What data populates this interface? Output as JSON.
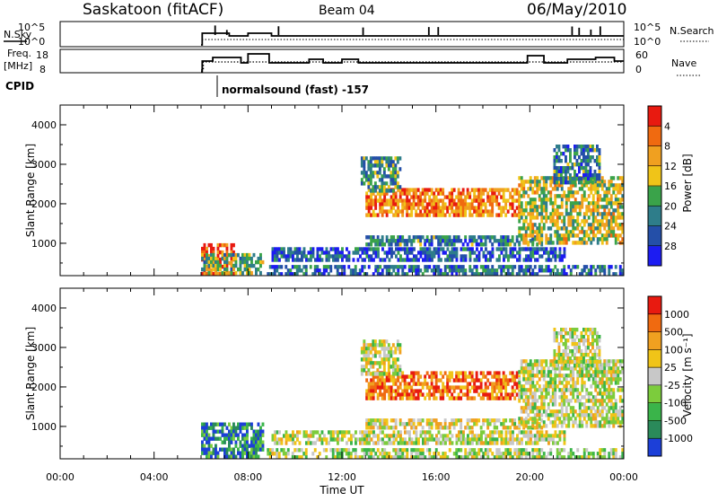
{
  "header": {
    "station": "Saskatoon (fitACF)",
    "beam": "Beam 04",
    "date": "06/May/2010"
  },
  "summary": {
    "nsky_label": "N.Sky",
    "nsky_ticks": [
      "10^5",
      "10^0"
    ],
    "nsearch_label": "N.Search",
    "nsearch_ticks": [
      "10^5",
      "10^0"
    ],
    "freq_label": "Freq.",
    "freq_unit": "[MHz]",
    "freq_ticks": [
      "18",
      "8"
    ],
    "nave_label": "Nave",
    "nave_ticks": [
      "60",
      "0"
    ],
    "cpid_label": "CPID",
    "cpid_value": "normalsound (fast) -157"
  },
  "chart_data": [
    {
      "type": "heatmap",
      "name": "power",
      "ylabel": "Slant Range [km]",
      "yticks": [
        "1000",
        "2000",
        "3000",
        "4000"
      ],
      "ylim": [
        180,
        4500
      ],
      "xlim": [
        0,
        24
      ],
      "colorbar_label": "Power [dB]",
      "colorbar_ticks": [
        "4",
        "8",
        "12",
        "16",
        "20",
        "24",
        "28"
      ],
      "colorbar_colors": [
        "#1c1cf2",
        "#244fa8",
        "#2e7d8a",
        "#3aa34a",
        "#f0c418",
        "#f0a020",
        "#f06a10",
        "#e81a10"
      ],
      "bands": [
        {
          "x": [
            6.0,
            7.4
          ],
          "y": [
            180,
            1000
          ],
          "level": 0.85
        },
        {
          "x": [
            6.0,
            8.6
          ],
          "y": [
            250,
            750
          ],
          "level": 0.45
        },
        {
          "x": [
            8.8,
            24.0
          ],
          "y": [
            200,
            450
          ],
          "level": 0.25
        },
        {
          "x": [
            9.0,
            21.5
          ],
          "y": [
            550,
            900
          ],
          "level": 0.2
        },
        {
          "x": [
            13.0,
            20.5
          ],
          "y": [
            1000,
            1200
          ],
          "level": 0.3
        },
        {
          "x": [
            13.0,
            19.5
          ],
          "y": [
            1700,
            2400
          ],
          "level": 0.75
        },
        {
          "x": [
            12.8,
            14.5
          ],
          "y": [
            2300,
            3200
          ],
          "level": 0.35
        },
        {
          "x": [
            19.5,
            24.0
          ],
          "y": [
            1000,
            2700
          ],
          "level": 0.55
        },
        {
          "x": [
            21.0,
            23.0
          ],
          "y": [
            2500,
            3500
          ],
          "level": 0.3
        }
      ]
    },
    {
      "type": "heatmap",
      "name": "velocity",
      "ylabel": "Slant Range [km]",
      "yticks": [
        "1000",
        "2000",
        "3000",
        "4000"
      ],
      "ylim": [
        180,
        4500
      ],
      "xlim": [
        0,
        24
      ],
      "xticks": [
        "00:00",
        "04:00",
        "08:00",
        "12:00",
        "16:00",
        "20:00",
        "00:00"
      ],
      "xlabel": "Time UT",
      "colorbar_label": "Velocity [m s⁻¹]",
      "colorbar_ticks": [
        "1000",
        "500",
        "100",
        "25",
        "-25",
        "-100",
        "-500",
        "-1000"
      ],
      "colorbar_colors": [
        "#1c3fd8",
        "#2a8a5a",
        "#3ab44a",
        "#7ccc3c",
        "#c8c8c8",
        "#f0c418",
        "#f0a020",
        "#f06a10",
        "#e81a10"
      ],
      "bands": [
        {
          "x": [
            6.0,
            8.6
          ],
          "y": [
            180,
            1100
          ],
          "level": 0.15
        },
        {
          "x": [
            8.8,
            24.0
          ],
          "y": [
            200,
            450
          ],
          "level": 0.45
        },
        {
          "x": [
            9.0,
            21.5
          ],
          "y": [
            550,
            900
          ],
          "level": 0.5
        },
        {
          "x": [
            13.0,
            20.5
          ],
          "y": [
            1000,
            1200
          ],
          "level": 0.55
        },
        {
          "x": [
            13.0,
            19.5
          ],
          "y": [
            1700,
            2400
          ],
          "level": 0.8
        },
        {
          "x": [
            12.8,
            14.5
          ],
          "y": [
            2300,
            3200
          ],
          "level": 0.5
        },
        {
          "x": [
            19.5,
            24.0
          ],
          "y": [
            1000,
            2700
          ],
          "level": 0.5
        },
        {
          "x": [
            21.0,
            23.0
          ],
          "y": [
            2500,
            3500
          ],
          "level": 0.5
        }
      ]
    }
  ]
}
